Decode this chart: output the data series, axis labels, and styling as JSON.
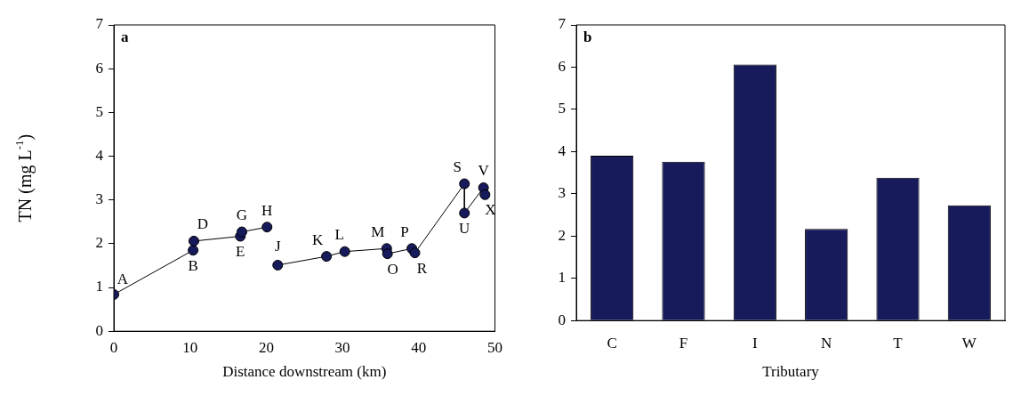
{
  "chart_data": [
    {
      "type": "line",
      "ylabel": "TN (mg L$^{-1}$)",
      "xlabel": "Distance downstream (km)",
      "xlim": [
        0,
        50
      ],
      "xticks": [
        0,
        10,
        20,
        30,
        40,
        50
      ],
      "ylim": [
        0,
        7
      ],
      "yticks": [
        0,
        1,
        2,
        3,
        4,
        5,
        6,
        7
      ],
      "marker": "circle",
      "grid": false,
      "legend": false,
      "series": [
        {
          "color": "#171a5b",
          "x": [
            0,
            10.4,
            10.5,
            16.6,
            16.8,
            20.1
          ],
          "values": [
            0.84,
            1.85,
            2.06,
            2.17,
            2.27,
            2.38
          ]
        },
        {
          "color": "#171a5b",
          "x": [
            21.5,
            27.9,
            30.3,
            35.8,
            35.9,
            39.1,
            39.5,
            46.0,
            46.0,
            48.5,
            48.7
          ],
          "values": [
            1.51,
            1.71,
            1.82,
            1.89,
            1.77,
            1.89,
            1.79,
            3.37,
            2.7,
            3.28,
            3.12
          ]
        }
      ],
      "annotations": [
        "a",
        {
          "text": "A",
          "x": 0,
          "y": 0.84
        },
        {
          "text": "B",
          "x": 10.4,
          "y": 1.85
        },
        {
          "text": "D",
          "x": 10.5,
          "y": 2.06
        },
        {
          "text": "E",
          "x": 16.6,
          "y": 2.17
        },
        {
          "text": "G",
          "x": 16.8,
          "y": 2.27
        },
        {
          "text": "H",
          "x": 20.1,
          "y": 2.38
        },
        {
          "text": "J",
          "x": 21.5,
          "y": 1.51
        },
        {
          "text": "K",
          "x": 27.9,
          "y": 1.71
        },
        {
          "text": "L",
          "x": 30.3,
          "y": 1.82
        },
        {
          "text": "M",
          "x": 35.8,
          "y": 1.89
        },
        {
          "text": "O",
          "x": 35.9,
          "y": 1.77
        },
        {
          "text": "P",
          "x": 39.1,
          "y": 1.89
        },
        {
          "text": "R",
          "x": 39.5,
          "y": 1.79
        },
        {
          "text": "S",
          "x": 46.0,
          "y": 3.37
        },
        {
          "text": "U",
          "x": 46.0,
          "y": 2.7
        },
        {
          "text": "V",
          "x": 48.5,
          "y": 3.28
        },
        {
          "text": "X",
          "x": 48.7,
          "y": 3.12
        }
      ]
    },
    {
      "type": "bar",
      "xlabel": "Tributary",
      "categories": [
        "C",
        "F",
        "I",
        "N",
        "T",
        "W"
      ],
      "values": [
        3.9,
        3.76,
        6.06,
        2.17,
        3.38,
        2.73
      ],
      "color": "#171a5b",
      "ylim": [
        0,
        7
      ],
      "yticks": [
        0,
        1,
        2,
        3,
        4,
        5,
        6,
        7
      ],
      "grid": false,
      "legend": false,
      "annotations": [
        "b"
      ]
    }
  ]
}
